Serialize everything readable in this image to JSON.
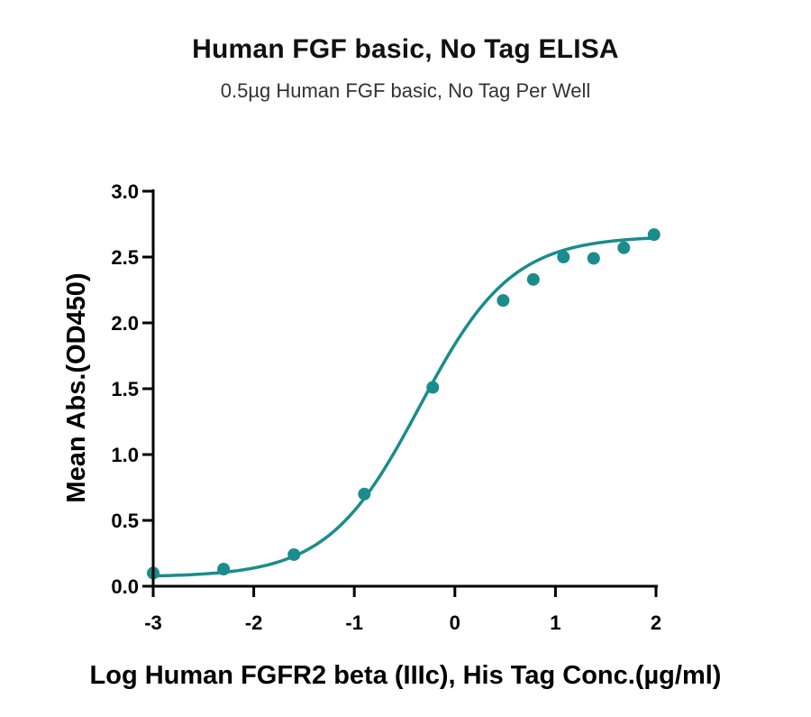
{
  "chart_data": {
    "type": "scatter",
    "title": "Human FGF basic, No Tag ELISA",
    "subtitle": "0.5µg Human FGF basic, No Tag Per Well",
    "xlabel": "Log Human FGFR2 beta (IIIc), His Tag Conc.(µg/ml)",
    "ylabel": "Mean Abs.(OD450)",
    "xlim": [
      -3,
      2
    ],
    "ylim": [
      0,
      3
    ],
    "x_ticks": [
      -3,
      -2,
      -1,
      0,
      1,
      2
    ],
    "y_ticks": [
      0.0,
      0.5,
      1.0,
      1.5,
      2.0,
      2.5,
      3.0
    ],
    "x_tick_labels": [
      "-3",
      "-2",
      "-1",
      "0",
      "1",
      "2"
    ],
    "y_tick_labels": [
      "0.0",
      "0.5",
      "1.0",
      "1.5",
      "2.0",
      "2.5",
      "3.0"
    ],
    "grid": false,
    "color": "#1a8c8c",
    "series": [
      {
        "points": {
          "x": [
            -3.0,
            -2.3,
            -1.6,
            -0.9,
            -0.22,
            0.48,
            0.78,
            1.08,
            1.38,
            1.68,
            1.98
          ],
          "y": [
            0.1,
            0.13,
            0.24,
            0.7,
            1.51,
            2.17,
            2.33,
            2.5,
            2.49,
            2.57,
            2.67
          ]
        },
        "fit_curve": {
          "model": "4PL",
          "bottom": 0.07,
          "top": 2.66,
          "logEC50": -0.35,
          "hill": 0.95
        }
      }
    ]
  }
}
